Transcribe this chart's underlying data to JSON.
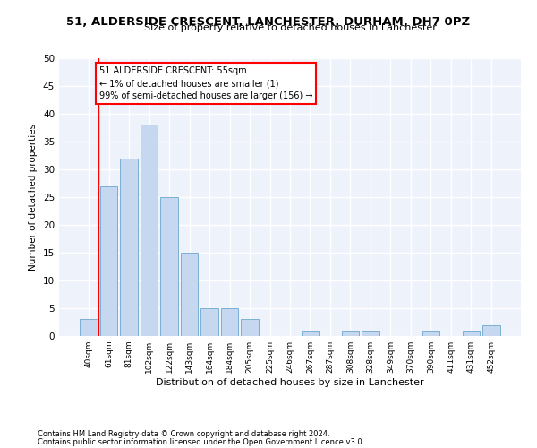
{
  "title": "51, ALDERSIDE CRESCENT, LANCHESTER, DURHAM, DH7 0PZ",
  "subtitle": "Size of property relative to detached houses in Lanchester",
  "xlabel": "Distribution of detached houses by size in Lanchester",
  "ylabel": "Number of detached properties",
  "bar_color": "#c5d8f0",
  "bar_edge_color": "#7aafd4",
  "background_color": "#eef2fb",
  "grid_color": "#ffffff",
  "categories": [
    "40sqm",
    "61sqm",
    "81sqm",
    "102sqm",
    "122sqm",
    "143sqm",
    "164sqm",
    "184sqm",
    "205sqm",
    "225sqm",
    "246sqm",
    "267sqm",
    "287sqm",
    "308sqm",
    "328sqm",
    "349sqm",
    "370sqm",
    "390sqm",
    "411sqm",
    "431sqm",
    "452sqm"
  ],
  "values": [
    3,
    27,
    32,
    38,
    25,
    15,
    5,
    5,
    3,
    0,
    0,
    1,
    0,
    1,
    1,
    0,
    0,
    1,
    0,
    1,
    2
  ],
  "ylim": [
    0,
    50
  ],
  "yticks": [
    0,
    5,
    10,
    15,
    20,
    25,
    30,
    35,
    40,
    45,
    50
  ],
  "annotation_box_text": "51 ALDERSIDE CRESCENT: 55sqm\n← 1% of detached houses are smaller (1)\n99% of semi-detached houses are larger (156) →",
  "footnote_line1": "Contains HM Land Registry data © Crown copyright and database right 2024.",
  "footnote_line2": "Contains public sector information licensed under the Open Government Licence v3.0."
}
